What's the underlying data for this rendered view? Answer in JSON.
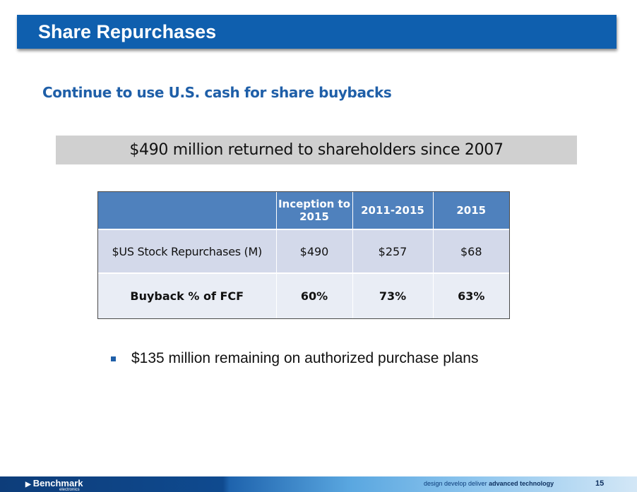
{
  "slide": {
    "title": "Share Repurchases",
    "subtitle": "Continue to use U.S. cash for share buybacks",
    "banner": "$490 million returned to shareholders since 2007"
  },
  "table": {
    "headers": [
      "",
      "Inception to 2015",
      "2011-2015",
      "2015"
    ],
    "rows": [
      {
        "label": "$US Stock Repurchases (M)",
        "values": [
          "$490",
          "$257",
          "$68"
        ]
      },
      {
        "label": "Buyback % of FCF",
        "values": [
          "60%",
          "73%",
          "63%"
        ]
      }
    ]
  },
  "bullets": [
    "$135 million remaining on authorized purchase plans"
  ],
  "footer": {
    "logo": "Benchmark",
    "logo_sub": "electronics",
    "tagline_prefix": "design develop deliver",
    "tagline_emphasis": "advanced technology",
    "page_number": "15"
  },
  "colors": {
    "title_bar": "#0f5fae",
    "subtitle": "#1f5fa8",
    "table_header": "#4f81bd",
    "banner": "#d0d0d0"
  }
}
